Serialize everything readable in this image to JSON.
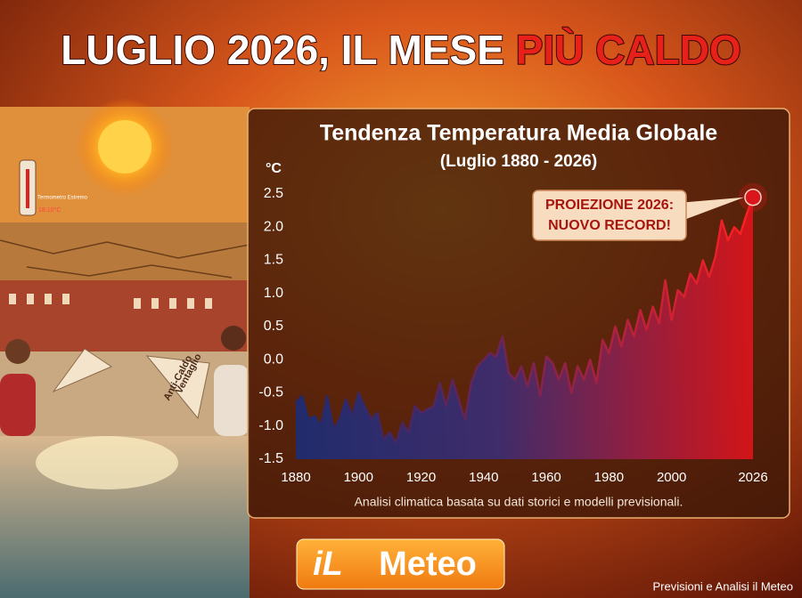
{
  "header": {
    "title_main": "LUGLIO 2026, IL MESE",
    "title_highlight": "PIÙ CALDO"
  },
  "photo": {
    "fan_label": [
      "Ventaglio",
      "Anti-Caldo"
    ],
    "thermometer_label": "Termometro Estremo",
    "thermometer_reading": "18:10°C"
  },
  "chart_data": {
    "type": "line",
    "title": "Tendenza Temperatura Media Globale",
    "subtitle": "(Luglio 1880 - 2026)",
    "y_label": "°C",
    "annotation": [
      "PROIEZIONE 2026:",
      "NUOVO RECORD!"
    ],
    "caption": "Analisi climatica basata su dati storici e modelli previsionali.",
    "x": [
      1880,
      1882,
      1884,
      1886,
      1888,
      1890,
      1892,
      1894,
      1896,
      1898,
      1900,
      1902,
      1904,
      1906,
      1908,
      1910,
      1912,
      1914,
      1916,
      1918,
      1920,
      1922,
      1924,
      1926,
      1928,
      1930,
      1932,
      1934,
      1936,
      1938,
      1940,
      1942,
      1944,
      1946,
      1948,
      1950,
      1952,
      1954,
      1956,
      1958,
      1960,
      1962,
      1964,
      1966,
      1968,
      1970,
      1972,
      1974,
      1976,
      1978,
      1980,
      1982,
      1984,
      1986,
      1988,
      1990,
      1992,
      1994,
      1996,
      1998,
      2000,
      2002,
      2004,
      2006,
      2008,
      2010,
      2012,
      2014,
      2016,
      2018,
      2020,
      2022,
      2024,
      2026
    ],
    "values": [
      -0.65,
      -0.55,
      -0.9,
      -0.85,
      -1.0,
      -0.55,
      -1.05,
      -0.9,
      -0.6,
      -0.85,
      -0.5,
      -0.7,
      -0.9,
      -0.8,
      -1.2,
      -1.1,
      -1.25,
      -0.95,
      -1.1,
      -0.7,
      -0.8,
      -0.75,
      -0.7,
      -0.35,
      -0.7,
      -0.3,
      -0.6,
      -0.9,
      -0.35,
      -0.1,
      0.0,
      0.1,
      0.05,
      0.35,
      -0.2,
      -0.3,
      -0.1,
      -0.4,
      -0.05,
      -0.55,
      0.05,
      -0.05,
      -0.3,
      -0.05,
      -0.5,
      -0.1,
      -0.3,
      0.0,
      -0.35,
      0.3,
      0.1,
      0.5,
      0.2,
      0.6,
      0.35,
      0.75,
      0.45,
      0.8,
      0.55,
      1.2,
      0.6,
      1.05,
      0.95,
      1.3,
      1.15,
      1.5,
      1.25,
      1.55,
      2.1,
      1.8,
      2.0,
      1.9,
      2.2,
      2.45
    ],
    "color": "#d8161b",
    "xlim": [
      1880,
      2026
    ],
    "xticks": [
      1880,
      1900,
      1920,
      1940,
      1960,
      1980,
      2000,
      2026
    ],
    "ylim": [
      -1.5,
      2.5
    ],
    "yticks": [
      2.5,
      {
        "value": 2,
        "label": "2.0"
      },
      1.5,
      {
        "value": 1,
        "label": "1.0"
      },
      0.5,
      {
        "value": 0,
        "label": "0.0"
      },
      -0.5,
      {
        "value": -1,
        "label": "-1.0"
      },
      -1.5
    ],
    "grid": false
  },
  "logo": {
    "prefix": "iL",
    "name": "Meteo"
  },
  "footer": "Previsioni e Analisi il Meteo"
}
